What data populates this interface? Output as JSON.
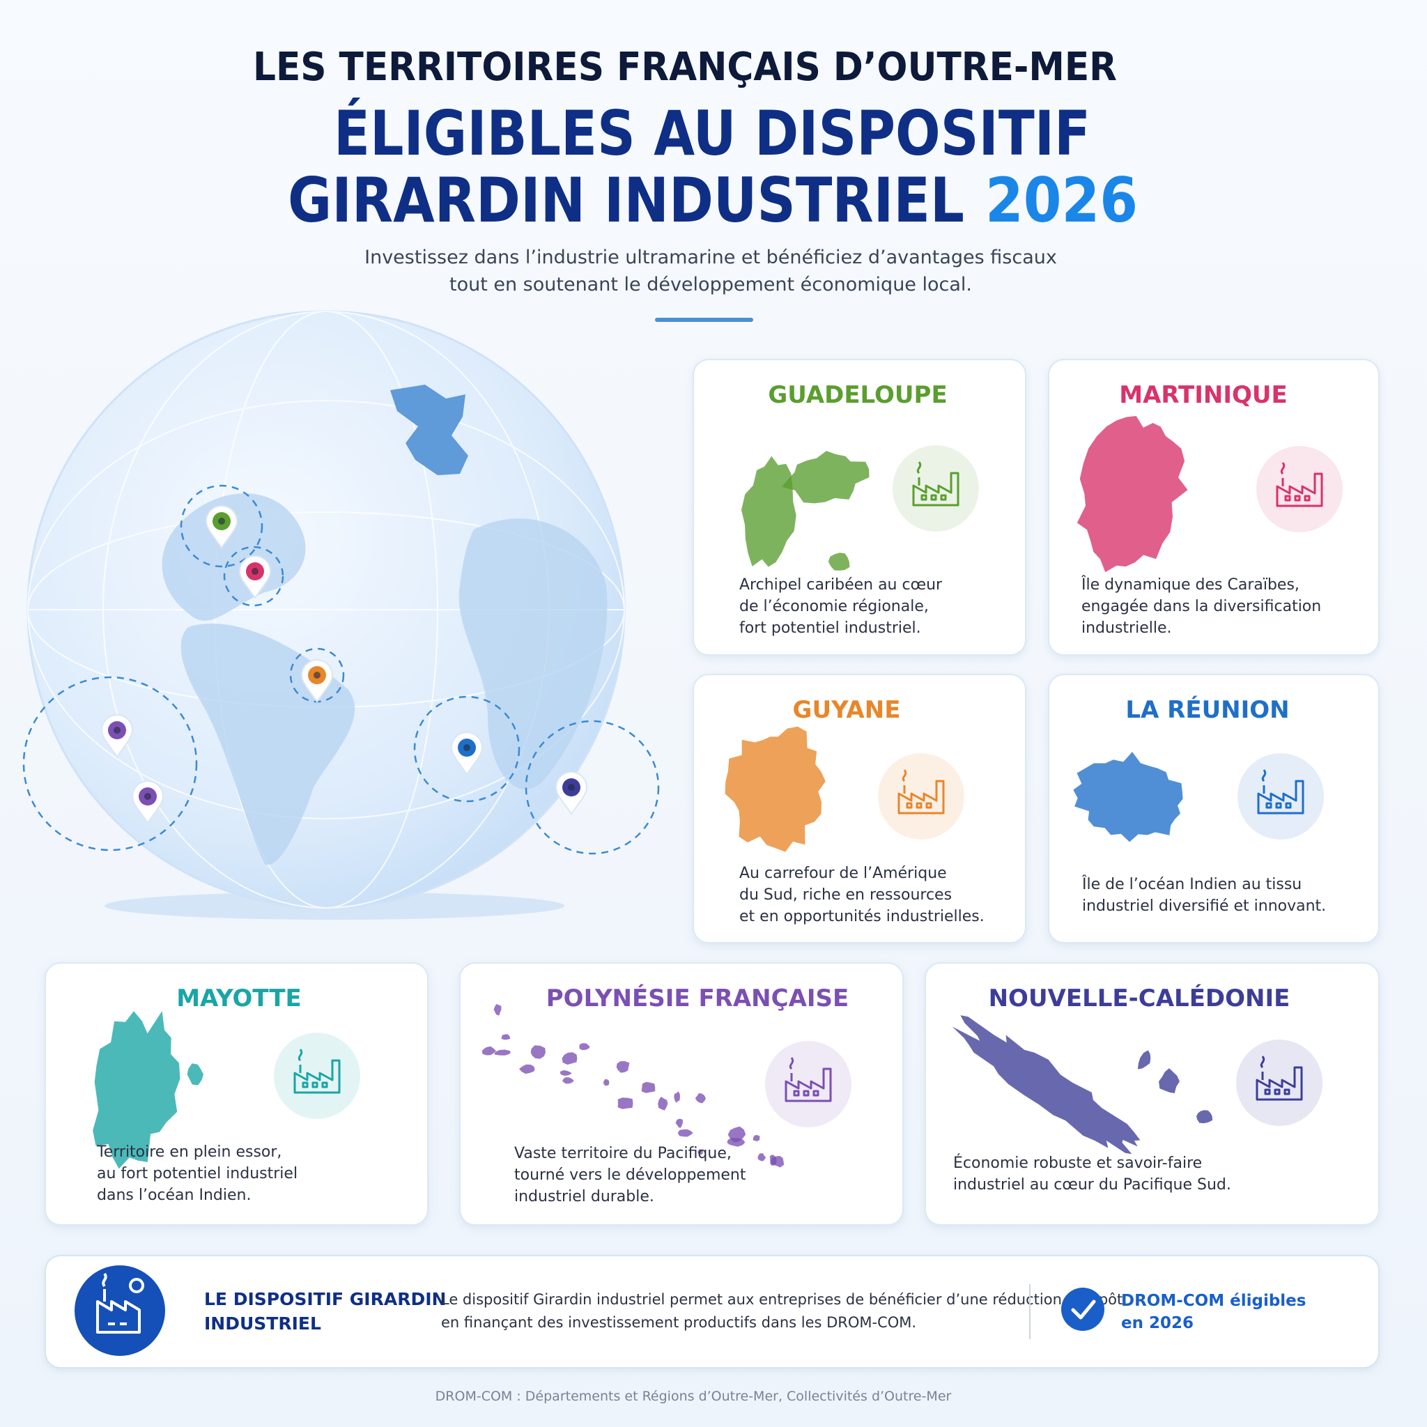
{
  "header": {
    "kicker": "LES TERRITOIRES FRANÇAIS D’OUTRE-MER",
    "title_line1": "ÉLIGIBLES AU DISPOSITIF",
    "title_line2": "GIRARDIN INDUSTRIEL",
    "title_year": "2026",
    "subtitle": [
      "Investissez dans l’industrie ultramarine et bénéficiez d’avantages fiscaux",
      "tout en soutenant le développement économique local."
    ]
  },
  "territories": [
    {
      "name": "GUADELOUPE",
      "color": "#5a9e2f",
      "description": [
        "Archipel caribéen au cœur",
        "de l’économie régionale,",
        "fort potentiel industriel."
      ]
    },
    {
      "name": "MARTINIQUE",
      "color": "#d8336a",
      "description": [
        "Île dynamique des Caraïbes,",
        "engagée dans la diversification",
        "industrielle."
      ]
    },
    {
      "name": "GUYANE",
      "color": "#e8862a",
      "description": [
        "Au carrefour de l’Amérique",
        "du Sud, riche en ressources",
        "et en opportunités industrielles."
      ]
    },
    {
      "name": "LA RÉUNION",
      "color": "#1f6fc9",
      "description": [
        "Île de l’océan Indien au tissu",
        "industriel diversifié et innovant."
      ]
    },
    {
      "name": "MAYOTTE",
      "color": "#1aa5a5",
      "description": [
        "Territoire en plein essor,",
        "au fort potentiel industriel",
        "dans l’océan Indien."
      ]
    },
    {
      "name": "POLYNÉSIE FRANÇAISE",
      "color": "#7b4fb3",
      "description": [
        "Vaste territoire du Pacifique,",
        "tourné vers le développement",
        "industriel durable."
      ]
    },
    {
      "name": "NOUVELLE-CALÉDONIE",
      "color": "#3d3d99",
      "description": [
        "Économie robuste et savoir-faire",
        "industriel au cœur du Pacifique Sud."
      ]
    }
  ],
  "banner": {
    "title": [
      "LE DISPOSITIF GIRARDIN",
      "INDUSTRIEL"
    ],
    "text": [
      "Le dispositif Girardin industriel permet aux entreprises de bénéficier d’une réduction d’impôt",
      "en finançant des investissement productifs dans les DROM-COM."
    ],
    "badge": [
      "DROM-COM éligibles",
      "en 2026"
    ]
  },
  "footnote": "DROM-COM : Départements et Régions d’Outre-Mer, Collectivités d’Outre-Mer"
}
